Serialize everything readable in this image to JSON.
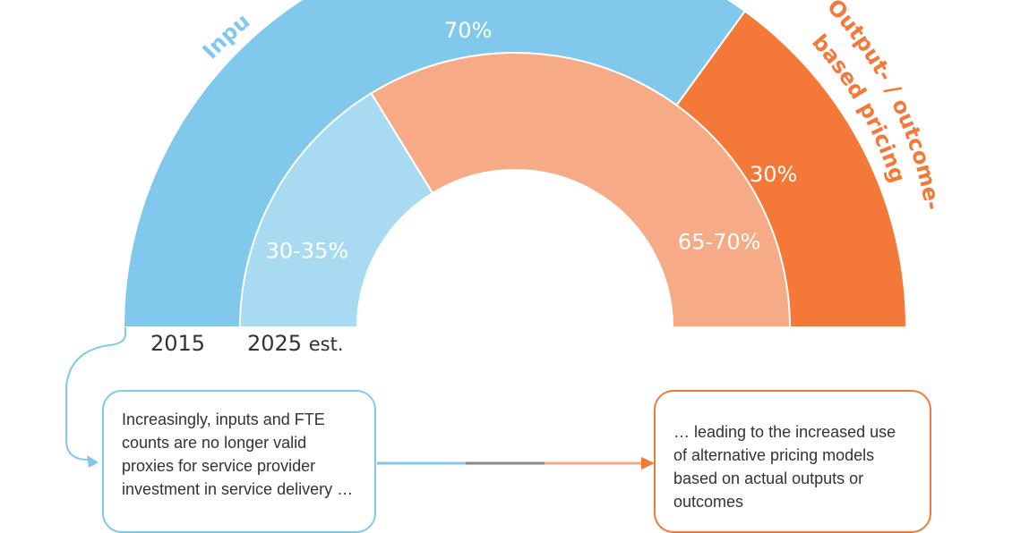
{
  "colors": {
    "input_blue": "#80c9ec",
    "input_light_blue": "#a8daf2",
    "output_orange": "#f47938",
    "output_light_orange": "#f6ab86",
    "connector_grey": "#8a8a8a"
  },
  "chart_data": {
    "type": "donut",
    "rings": [
      {
        "year": "2015",
        "segments": [
          {
            "name": "Input-based pricing",
            "value": 70,
            "label": "70%"
          },
          {
            "name": "Output- / outcome-based pricing",
            "value": 30,
            "label": "30%"
          }
        ]
      },
      {
        "year": "2025 est.",
        "segments": [
          {
            "name": "Input-based pricing",
            "value": 32.5,
            "label": "30-35%"
          },
          {
            "name": "Output- / outcome-based pricing",
            "value": 67.5,
            "label": "65-70%"
          }
        ]
      }
    ],
    "arc_labels": {
      "input_visible": "Inpu",
      "output_line1": "Output- / outcome-",
      "output_line2": "based pricing"
    }
  },
  "years": {
    "outer": "2015",
    "inner_year": "2025",
    "inner_suffix": "est."
  },
  "callouts": {
    "left_text": "Increasingly, inputs and FTE counts are no longer  valid proxies for service provider investment in service delivery …",
    "right_text": "… leading to the increased use of alternative pricing models based on actual outputs or outcomes"
  }
}
